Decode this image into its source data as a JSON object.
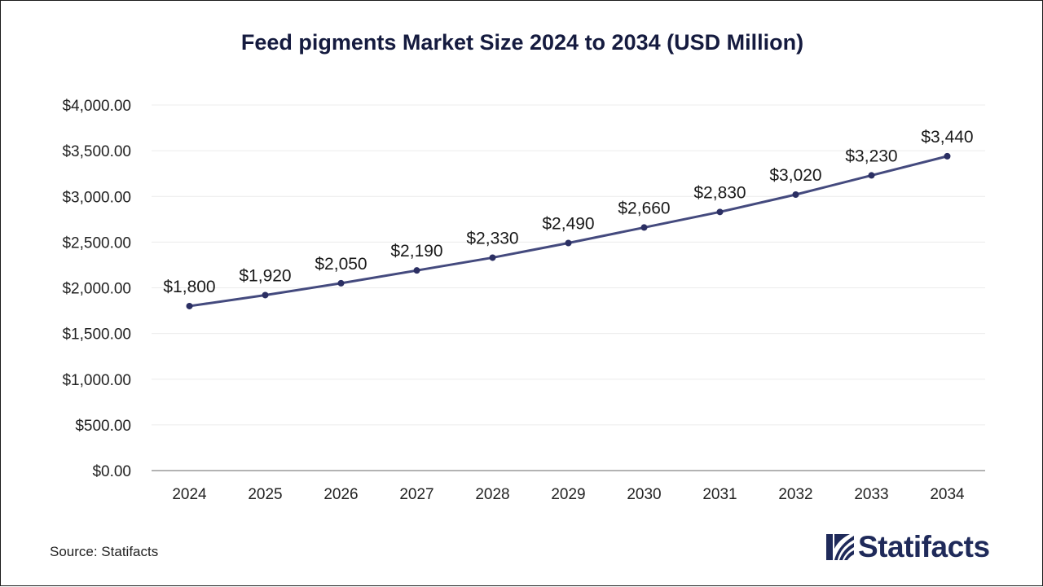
{
  "chart_data": {
    "type": "line",
    "title": "Feed pigments Market Size 2024 to 2034 (USD Million)",
    "xlabel": "",
    "ylabel": "",
    "categories": [
      "2024",
      "2025",
      "2026",
      "2027",
      "2028",
      "2029",
      "2030",
      "2031",
      "2032",
      "2033",
      "2034"
    ],
    "series": [
      {
        "values": [
          1800,
          1920,
          2050,
          2190,
          2330,
          2490,
          2660,
          2830,
          3020,
          3230,
          3440
        ],
        "data_labels": [
          "$1,800",
          "$1,920",
          "$2,050",
          "$2,190",
          "$2,330",
          "$2,490",
          "$2,660",
          "$2,830",
          "$3,020",
          "$3,230",
          "$3,440"
        ],
        "color": "#444a7e"
      }
    ],
    "ylim": [
      0,
      4000
    ],
    "yticks": [
      0,
      500,
      1000,
      1500,
      2000,
      2500,
      3000,
      3500,
      4000
    ],
    "ytick_labels": [
      "$0.00",
      "$500.00",
      "$1,000.00",
      "$1,500.00",
      "$2,000.00",
      "$2,500.00",
      "$3,000.00",
      "$3,500.00",
      "$4,000.00"
    ],
    "grid": true,
    "legend": "none"
  },
  "footer": {
    "source": "Source: Statifacts",
    "brand": "Statifacts"
  },
  "colors": {
    "title": "#151b3f",
    "line": "#444a7e",
    "marker": "#2b2f63",
    "grid": "#ececec",
    "axis": "#9a9a9a",
    "brand": "#1f2a5a"
  }
}
